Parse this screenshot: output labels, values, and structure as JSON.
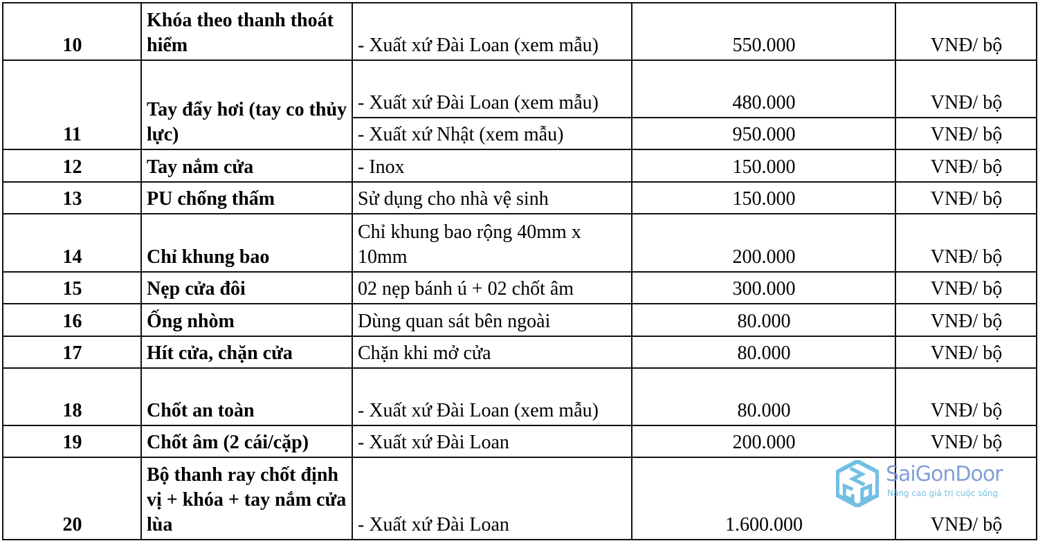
{
  "rows": [
    {
      "no": "10",
      "name": "Khóa theo thanh thoát hiểm",
      "items": [
        {
          "desc": "- Xuất xứ Đài Loan (xem mẫu)",
          "price": "550.000",
          "unit": "VNĐ/ bộ"
        }
      ]
    },
    {
      "no": "11",
      "name": "Tay đẩy hơi (tay co thủy lực)",
      "items": [
        {
          "desc": "- Xuất xứ Đài Loan (xem mẫu)",
          "price": "480.000",
          "unit": "VNĐ/ bộ"
        },
        {
          "desc": "- Xuất xứ Nhật (xem mẫu)",
          "price": "950.000",
          "unit": "VNĐ/ bộ"
        }
      ]
    },
    {
      "no": "12",
      "name": "Tay nắm cửa",
      "items": [
        {
          "desc": "- Inox",
          "price": "150.000",
          "unit": "VNĐ/ bộ"
        }
      ]
    },
    {
      "no": "13",
      "name": "PU chống thấm",
      "items": [
        {
          "desc": "Sử dụng cho nhà vệ sinh",
          "price": "150.000",
          "unit": "VNĐ/ bộ"
        }
      ]
    },
    {
      "no": "14",
      "name": "Chỉ khung bao",
      "items": [
        {
          "desc": "Chỉ khung bao rộng 40mm x 10mm",
          "price": "200.000",
          "unit": "VNĐ/ bộ"
        }
      ]
    },
    {
      "no": "15",
      "name": "Nẹp cửa đôi",
      "items": [
        {
          "desc": "02 nẹp bánh ú + 02 chốt âm",
          "price": "300.000",
          "unit": "VNĐ/ bộ"
        }
      ]
    },
    {
      "no": "16",
      "name": "Ống nhòm",
      "items": [
        {
          "desc": "Dùng quan sát bên ngoài",
          "price": "80.000",
          "unit": "VNĐ/ bộ"
        }
      ]
    },
    {
      "no": "17",
      "name": "Hít cửa, chặn cửa",
      "items": [
        {
          "desc": "Chặn khi mở cửa",
          "price": "80.000",
          "unit": "VNĐ/ bộ"
        }
      ]
    },
    {
      "no": "18",
      "name": "Chốt an toàn",
      "items": [
        {
          "desc": "- Xuất xứ Đài Loan (xem mẫu)",
          "price": "80.000",
          "unit": "VNĐ/ bộ"
        }
      ]
    },
    {
      "no": "19",
      "name": "Chốt âm (2 cái/cặp)",
      "items": [
        {
          "desc": "- Xuất xứ Đài Loan",
          "price": "200.000",
          "unit": "VNĐ/ bộ"
        }
      ]
    },
    {
      "no": "20",
      "name": "Bộ thanh ray chốt định vị + khóa + tay nắm cửa lùa",
      "items": [
        {
          "desc": "- Xuất xứ Đài Loan",
          "price": "1.600.000",
          "unit": "VNĐ/ bộ"
        }
      ]
    }
  ],
  "watermark": {
    "brand": "SaiGonDoor",
    "tagline": "Nâng cao giá trị cuộc sống",
    "color": "#5bb5e0"
  }
}
